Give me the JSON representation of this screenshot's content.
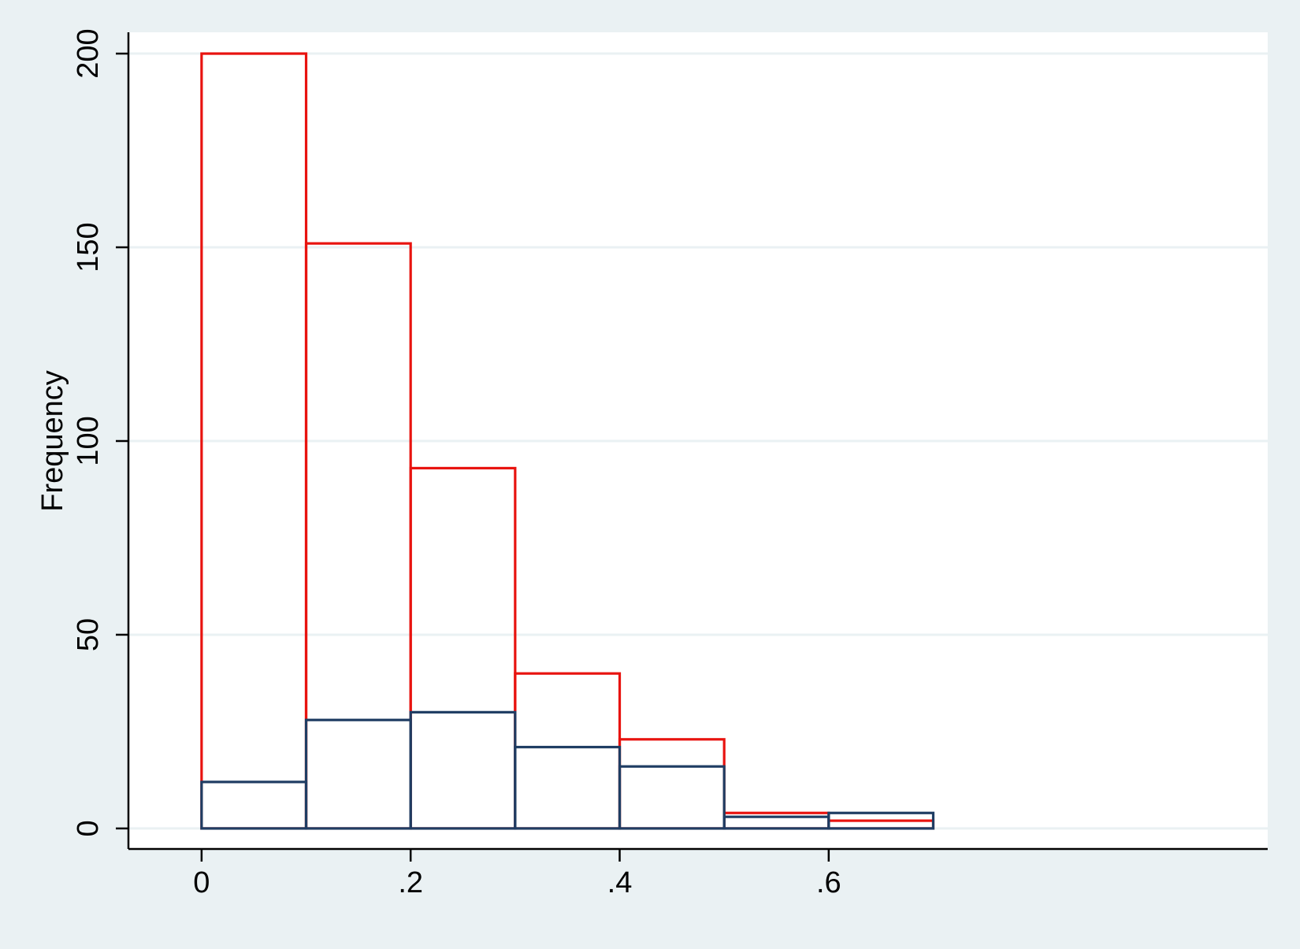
{
  "chart_data": {
    "type": "bar",
    "title": "",
    "xlabel": "",
    "ylabel": "Frequency",
    "xlim": [
      -0.07,
      1.02
    ],
    "ylim": [
      -5.3,
      205.5
    ],
    "x_ticks": [
      {
        "value": 0,
        "label": "0"
      },
      {
        "value": 0.2,
        "label": ".2"
      },
      {
        "value": 0.4,
        "label": ".4"
      },
      {
        "value": 0.6,
        "label": ".6"
      }
    ],
    "y_ticks": [
      {
        "value": 0,
        "label": "0"
      },
      {
        "value": 50,
        "label": "50"
      },
      {
        "value": 100,
        "label": "100"
      },
      {
        "value": 150,
        "label": "150"
      },
      {
        "value": 200,
        "label": "200"
      }
    ],
    "grid": true,
    "bin_edges": [
      0,
      0.1,
      0.2,
      0.3,
      0.4,
      0.5,
      0.6,
      0.7
    ],
    "series": [
      {
        "values": [
          200,
          151,
          93,
          40,
          23,
          4,
          2
        ],
        "color": "#e8130f"
      },
      {
        "values": [
          12,
          28,
          30,
          21,
          16,
          3,
          4
        ],
        "color": "#1f3d63"
      }
    ],
    "colors": {
      "background": "#eaf1f3",
      "plot_background": "#ffffff",
      "grid": "#eaf1f3",
      "axis": "#000000"
    }
  }
}
